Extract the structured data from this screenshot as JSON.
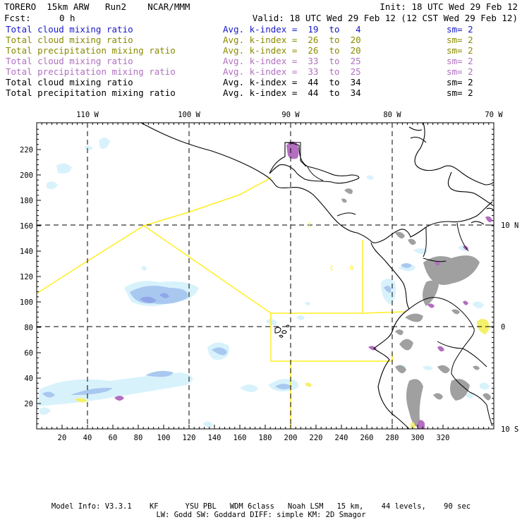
{
  "header": {
    "model": "TORERO  15km ARW   Run2    NCAR/MMM",
    "init": "Init: 18 UTC Wed 29 Feb 12",
    "fcst_label": "Fcst:",
    "fcst_value": "0 h",
    "valid": "Valid: 18 UTC Wed 29 Feb 12 (12 CST Wed 29 Feb 12)"
  },
  "legend": [
    {
      "field": "Total cloud mixing ratio",
      "kindex": "Avg. k-index =  19  to   4",
      "sm": "sm= 2",
      "color": "#1818c8"
    },
    {
      "field": "Total cloud mixing ratio",
      "kindex": "Avg. k-index =  26  to  20",
      "sm": "sm= 2",
      "color": "#8a8a00"
    },
    {
      "field": "Total precipitation mixing ratio",
      "kindex": "Avg. k-index =  26  to  20",
      "sm": "sm= 2",
      "color": "#8a8a00"
    },
    {
      "field": "Total cloud mixing ratio",
      "kindex": "Avg. k-index =  33  to  25",
      "sm": "sm= 2",
      "color": "#b070c0"
    },
    {
      "field": "Total precipitation mixing ratio",
      "kindex": "Avg. k-index =  33  to  25",
      "sm": "sm= 2",
      "color": "#b070c0"
    },
    {
      "field": "Total cloud mixing ratio",
      "kindex": "Avg. k-index =  44  to  34",
      "sm": "sm= 2",
      "color": "#000000"
    },
    {
      "field": "Total precipitation mixing ratio",
      "kindex": "Avg. k-index =  44  to  34",
      "sm": "sm= 2",
      "color": "#000000"
    }
  ],
  "map": {
    "lon_labels": [
      "110 W",
      "100 W",
      "90 W",
      "80 W",
      "70 W"
    ],
    "lat_labels": [
      "10 N",
      "0",
      "10 S"
    ],
    "x_ticks": [
      "20",
      "40",
      "60",
      "80",
      "100",
      "120",
      "140",
      "160",
      "180",
      "200",
      "220",
      "240",
      "260",
      "280",
      "300",
      "320"
    ],
    "y_ticks": [
      "220",
      "200",
      "180",
      "160",
      "140",
      "120",
      "100",
      "80",
      "60",
      "40",
      "20"
    ],
    "region_labels": [
      "I",
      "C",
      "R"
    ],
    "colors": {
      "frame": "#000000",
      "coast": "#000000",
      "grid": "#000000",
      "boundary": "#ffee22",
      "cloud_light": "#d8f2fc",
      "cloud_mid": "#a9c8f0",
      "cloud_core": "#8fa6e8",
      "purple": "#b36ec0",
      "gray": "#a0a0a0",
      "yellow": "#f4f06a"
    }
  },
  "footer": {
    "line1": "Model Info: V3.3.1    KF      YSU PBL   WDM 6class   Noah LSM   15 km,    44 levels,    90 sec",
    "line2": "LW: Godd SW: Goddard DIFF: simple KM: 2D Smagor"
  }
}
